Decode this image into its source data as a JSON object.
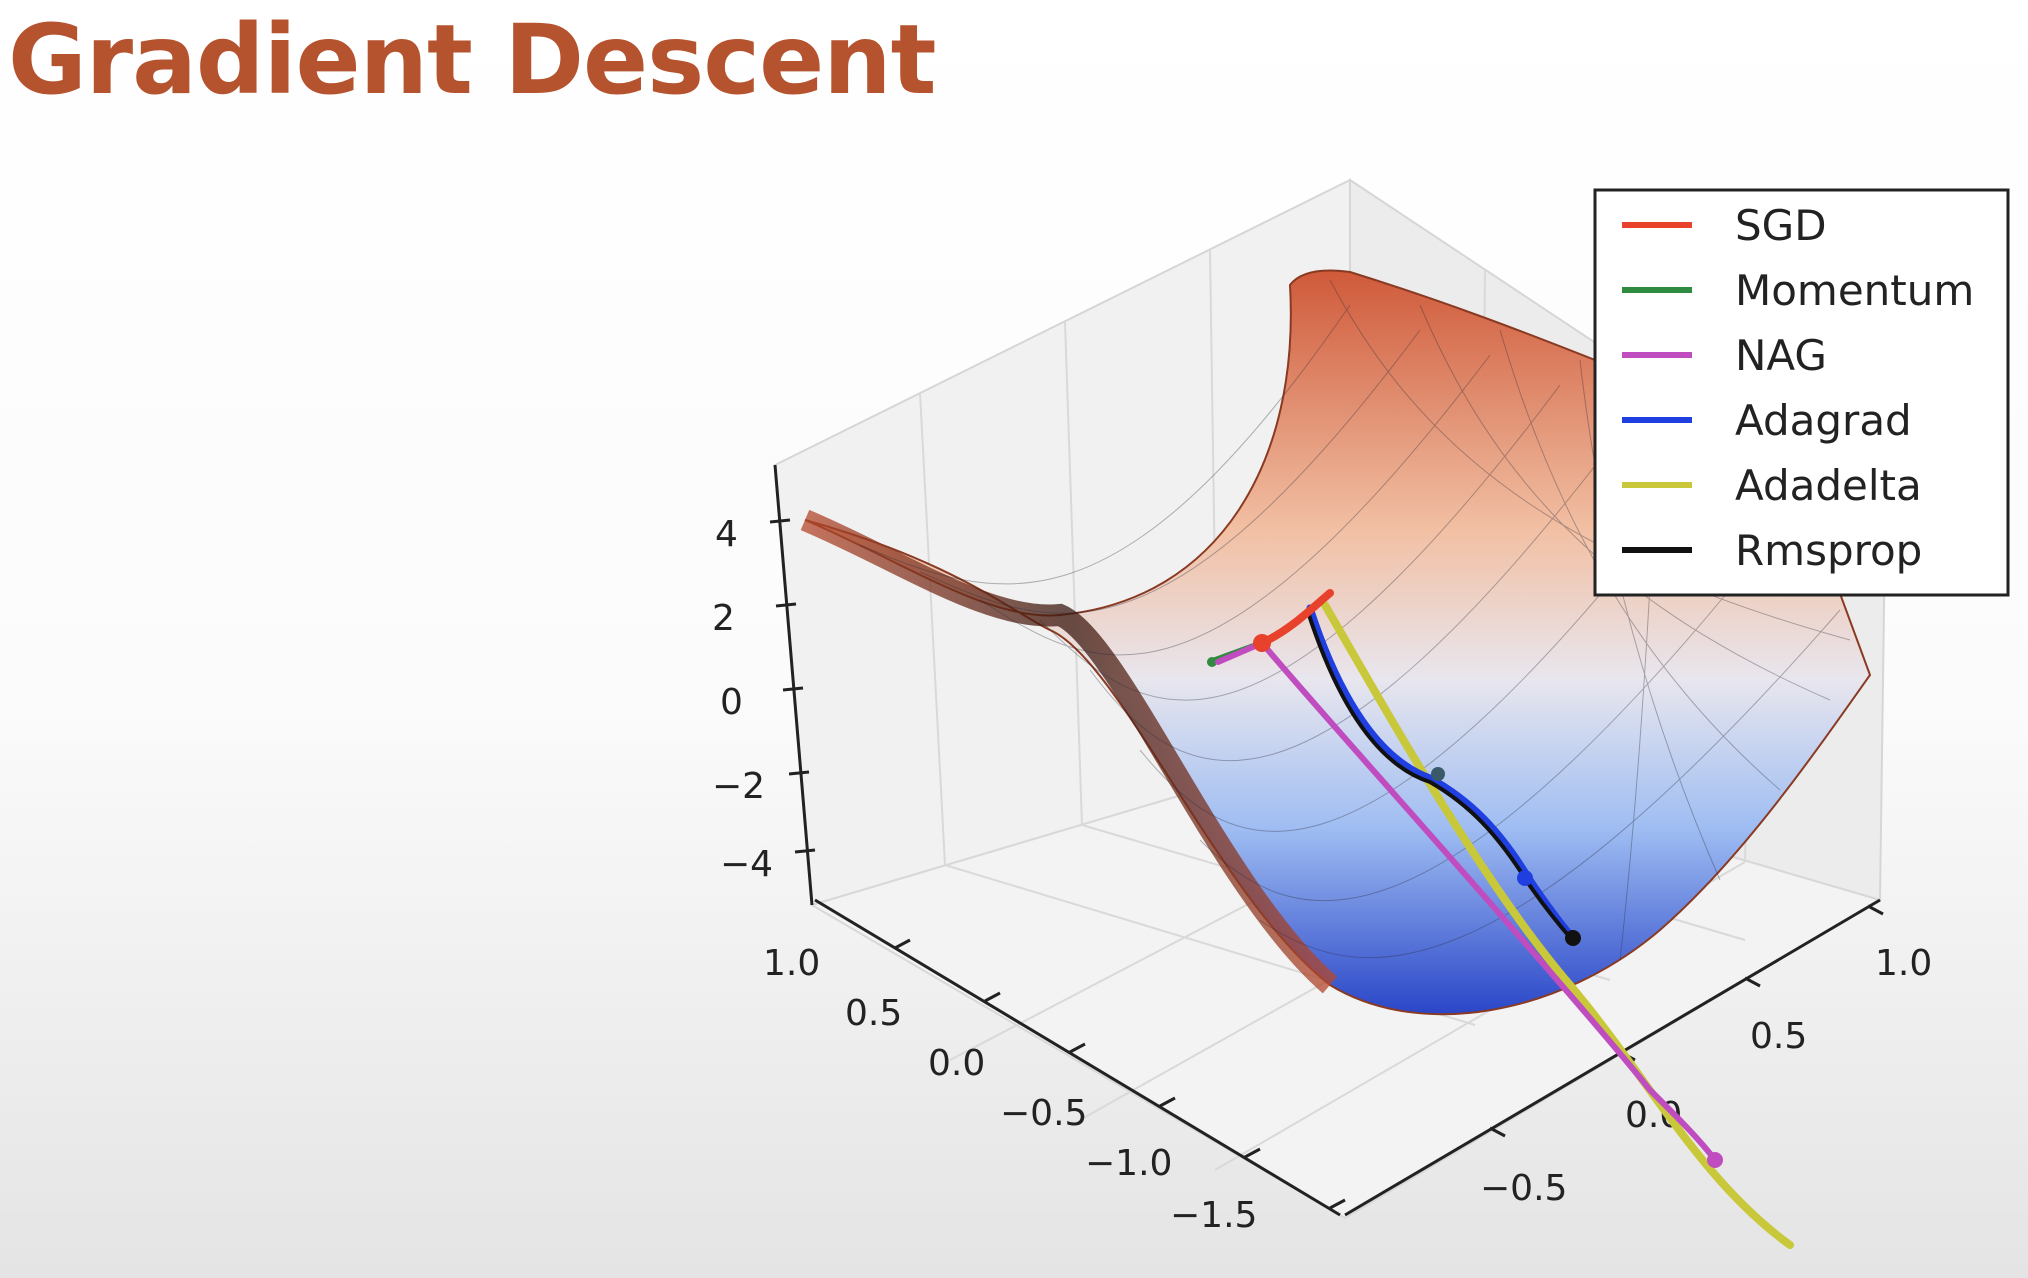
{
  "slide": {
    "title": "Gradient Descent"
  },
  "chart_data": {
    "type": "surface",
    "title": "",
    "surface": "saddle (z = x^2 - y^2)",
    "zlim": [
      -4,
      4
    ],
    "z_ticks": [
      "4",
      "2",
      "0",
      "−2",
      "−4"
    ],
    "x_ticks": [
      "1.0",
      "0.5",
      "0.0",
      "−0.5",
      "−1.0",
      "−1.5"
    ],
    "y_ticks": [
      "−0.5",
      "0.0",
      "0.5",
      "1.0"
    ],
    "colormap": [
      "#3b4cc0",
      "#f7f7f7",
      "#b40426"
    ],
    "legend_position": "top-right",
    "series": [
      {
        "name": "SGD",
        "color": "#e8412c"
      },
      {
        "name": "Momentum",
        "color": "#2e8b3f"
      },
      {
        "name": "NAG",
        "color": "#c04dc0"
      },
      {
        "name": "Adagrad",
        "color": "#1f3fe0"
      },
      {
        "name": "Adadelta",
        "color": "#c8c83a"
      },
      {
        "name": "Rmsprop",
        "color": "#111111"
      }
    ]
  }
}
